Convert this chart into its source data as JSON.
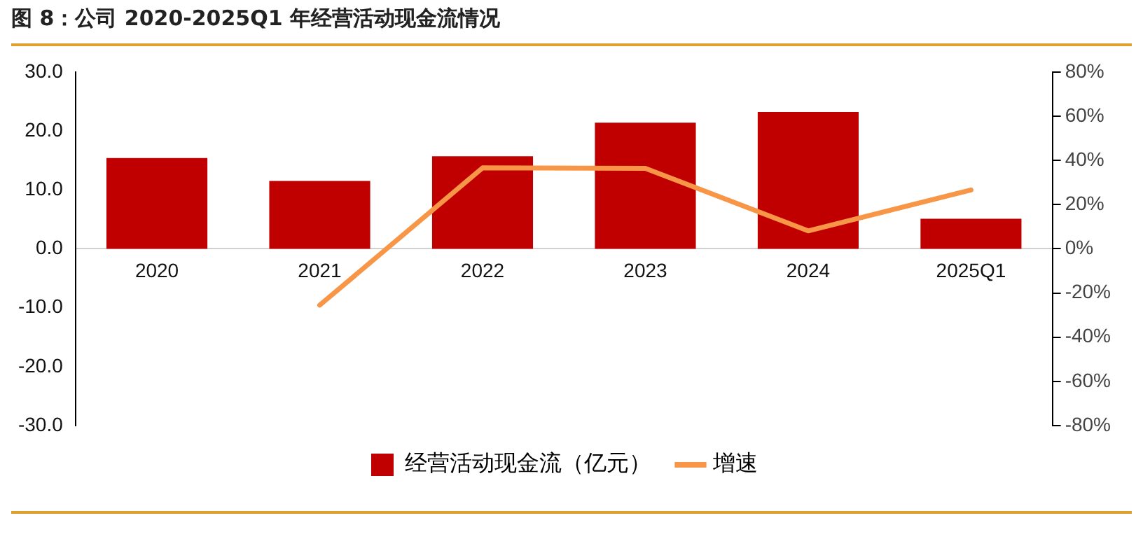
{
  "chart_data": {
    "type": "bar",
    "title": "图 8：公司 2020-2025Q1 年经营活动现金流情况",
    "categories": [
      "2020",
      "2021",
      "2022",
      "2023",
      "2024",
      "2025Q1"
    ],
    "series": [
      {
        "name": "经营活动现金流（亿元）",
        "color": "#c00000",
        "values": [
          15.4,
          11.5,
          15.7,
          21.4,
          23.2,
          5.1
        ]
      },
      {
        "name": "增速",
        "type": "line",
        "axis": "y2",
        "color": "#f79646",
        "values": [
          null,
          -25.5,
          36.6,
          36.4,
          8.1,
          26.6
        ]
      }
    ],
    "ylim": [
      -30,
      30
    ],
    "yticks": [
      {
        "value": -30,
        "label": "-30.0"
      },
      {
        "value": -20,
        "label": "-20.0"
      },
      {
        "value": -10,
        "label": "-10.0"
      },
      {
        "value": 0,
        "label": "0.0"
      },
      {
        "value": 10,
        "label": "10.0"
      },
      {
        "value": 20,
        "label": "20.0"
      },
      {
        "value": 30,
        "label": "30.0"
      }
    ],
    "y2lim": [
      -80,
      80
    ],
    "y2ticks": [
      {
        "value": -80,
        "label": "-80%"
      },
      {
        "value": -60,
        "label": "-60%"
      },
      {
        "value": -40,
        "label": "-40%"
      },
      {
        "value": -20,
        "label": "-20%"
      },
      {
        "value": 0,
        "label": "0%"
      },
      {
        "value": 20,
        "label": "20%"
      },
      {
        "value": 40,
        "label": "40%"
      },
      {
        "value": 60,
        "label": "60%"
      },
      {
        "value": 80,
        "label": "80%"
      }
    ],
    "grid": false,
    "legend": "bottom",
    "marker": "none"
  }
}
